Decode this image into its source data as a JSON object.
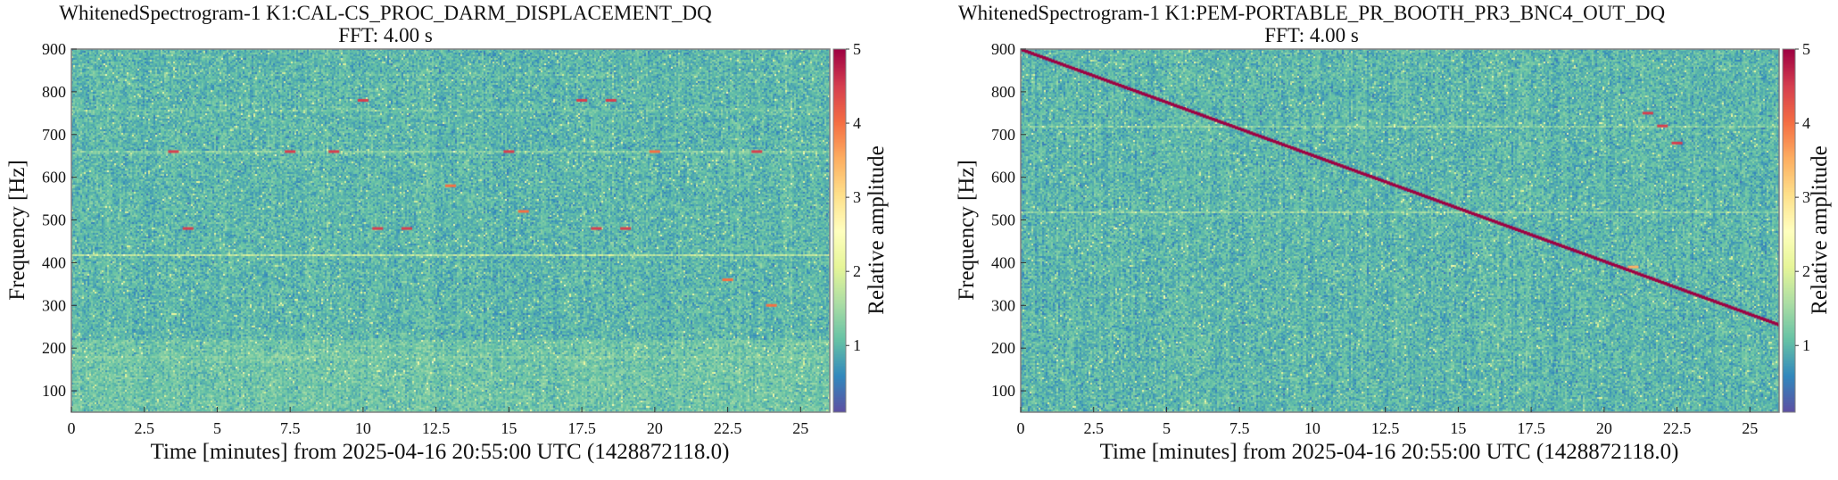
{
  "colors": {
    "colormap": [
      "#5e4fa2",
      "#3288bd",
      "#66c2a5",
      "#abdda4",
      "#e6f598",
      "#ffffbf",
      "#fee08b",
      "#fdae61",
      "#f46d43",
      "#d53e4f",
      "#9e0142"
    ],
    "track": "#c8102e",
    "frame": "#808080"
  },
  "chart_data": [
    {
      "type": "heatmap",
      "title": "WhitenedSpectrogram-1 K1:CAL-CS_PROC_DARM_DISPLACEMENT_DQ",
      "subtitle": "FFT: 4.00 s",
      "xlabel": "Time [minutes] from 2025-04-16 20:55:00 UTC (1428872118.0)",
      "ylabel": "Frequency [Hz]",
      "colorbar_label": "Relative amplitude",
      "xlim": [
        0,
        26
      ],
      "ylim": [
        50,
        900
      ],
      "clim": [
        0.1,
        5
      ],
      "xticks": [
        0,
        2.5,
        5,
        7.5,
        10,
        12.5,
        15,
        17.5,
        20,
        22.5,
        25
      ],
      "xtick_labels": [
        "0",
        "2.5",
        "5",
        "7.5",
        "10",
        "12.5",
        "15",
        "17.5",
        "20",
        "22.5",
        "25"
      ],
      "yticks": [
        100,
        200,
        300,
        400,
        500,
        600,
        700,
        800,
        900
      ],
      "ytick_labels": [
        "100",
        "200",
        "300",
        "400",
        "500",
        "600",
        "700",
        "800",
        "900"
      ],
      "cbar_ticks": [
        1,
        2,
        3,
        4,
        5
      ],
      "cbar_tick_labels": [
        "1",
        "2",
        "3",
        "4",
        "5"
      ],
      "background_level": 1.0,
      "spectral_lines": [
        {
          "frequency": 180,
          "amplitude": 1.6
        },
        {
          "frequency": 420,
          "amplitude": 1.8
        },
        {
          "frequency": 660,
          "amplitude": 1.7
        },
        {
          "frequency": 760,
          "amplitude": 1.4
        },
        {
          "frequency": 840,
          "amplitude": 1.3
        }
      ],
      "transients": [
        {
          "time": 3.5,
          "frequency": 660,
          "amplitude": 4.5
        },
        {
          "time": 4.0,
          "frequency": 480,
          "amplitude": 4.5
        },
        {
          "time": 7.5,
          "frequency": 660,
          "amplitude": 4.5
        },
        {
          "time": 9.0,
          "frequency": 660,
          "amplitude": 4.5
        },
        {
          "time": 10.0,
          "frequency": 780,
          "amplitude": 4.5
        },
        {
          "time": 10.5,
          "frequency": 480,
          "amplitude": 4.5
        },
        {
          "time": 11.5,
          "frequency": 480,
          "amplitude": 4.5
        },
        {
          "time": 13.0,
          "frequency": 580,
          "amplitude": 4.0
        },
        {
          "time": 15.0,
          "frequency": 660,
          "amplitude": 4.5
        },
        {
          "time": 15.5,
          "frequency": 520,
          "amplitude": 4.0
        },
        {
          "time": 17.5,
          "frequency": 780,
          "amplitude": 4.5
        },
        {
          "time": 18.5,
          "frequency": 780,
          "amplitude": 4.5
        },
        {
          "time": 18.0,
          "frequency": 480,
          "amplitude": 4.5
        },
        {
          "time": 19.0,
          "frequency": 480,
          "amplitude": 4.5
        },
        {
          "time": 20.0,
          "frequency": 660,
          "amplitude": 4.0
        },
        {
          "time": 22.5,
          "frequency": 360,
          "amplitude": 4.0
        },
        {
          "time": 23.5,
          "frequency": 660,
          "amplitude": 4.5
        },
        {
          "time": 24.0,
          "frequency": 300,
          "amplitude": 4.0
        }
      ],
      "tracks": []
    },
    {
      "type": "heatmap",
      "title": "WhitenedSpectrogram-1 K1:PEM-PORTABLE_PR_BOOTH_PR3_BNC4_OUT_DQ",
      "subtitle": "FFT: 4.00 s",
      "xlabel": "Time [minutes] from 2025-04-16 20:55:00 UTC (1428872118.0)",
      "ylabel": "Frequency [Hz]",
      "colorbar_label": "Relative amplitude",
      "xlim": [
        0,
        26
      ],
      "ylim": [
        50,
        900
      ],
      "clim": [
        0.1,
        5
      ],
      "xticks": [
        0,
        2.5,
        5,
        7.5,
        10,
        12.5,
        15,
        17.5,
        20,
        22.5,
        25
      ],
      "xtick_labels": [
        "0",
        "2.5",
        "5",
        "7.5",
        "10",
        "12.5",
        "15",
        "17.5",
        "20",
        "22.5",
        "25"
      ],
      "yticks": [
        100,
        200,
        300,
        400,
        500,
        600,
        700,
        800,
        900
      ],
      "ytick_labels": [
        "100",
        "200",
        "300",
        "400",
        "500",
        "600",
        "700",
        "800",
        "900"
      ],
      "cbar_ticks": [
        1,
        2,
        3,
        4,
        5
      ],
      "cbar_tick_labels": [
        "1",
        "2",
        "3",
        "4",
        "5"
      ],
      "background_level": 1.0,
      "spectral_lines": [
        {
          "frequency": 720,
          "amplitude": 1.4
        },
        {
          "frequency": 520,
          "amplitude": 1.3
        }
      ],
      "transients": [
        {
          "time": 21.0,
          "frequency": 390,
          "amplitude": 3.5
        },
        {
          "time": 21.5,
          "frequency": 750,
          "amplitude": 4.5
        },
        {
          "time": 22.0,
          "frequency": 720,
          "amplitude": 4.5
        },
        {
          "time": 22.5,
          "frequency": 680,
          "amplitude": 4.5
        }
      ],
      "tracks": [
        {
          "start": [
            0,
            900
          ],
          "end": [
            26,
            255
          ],
          "amplitude": 5
        }
      ]
    }
  ]
}
